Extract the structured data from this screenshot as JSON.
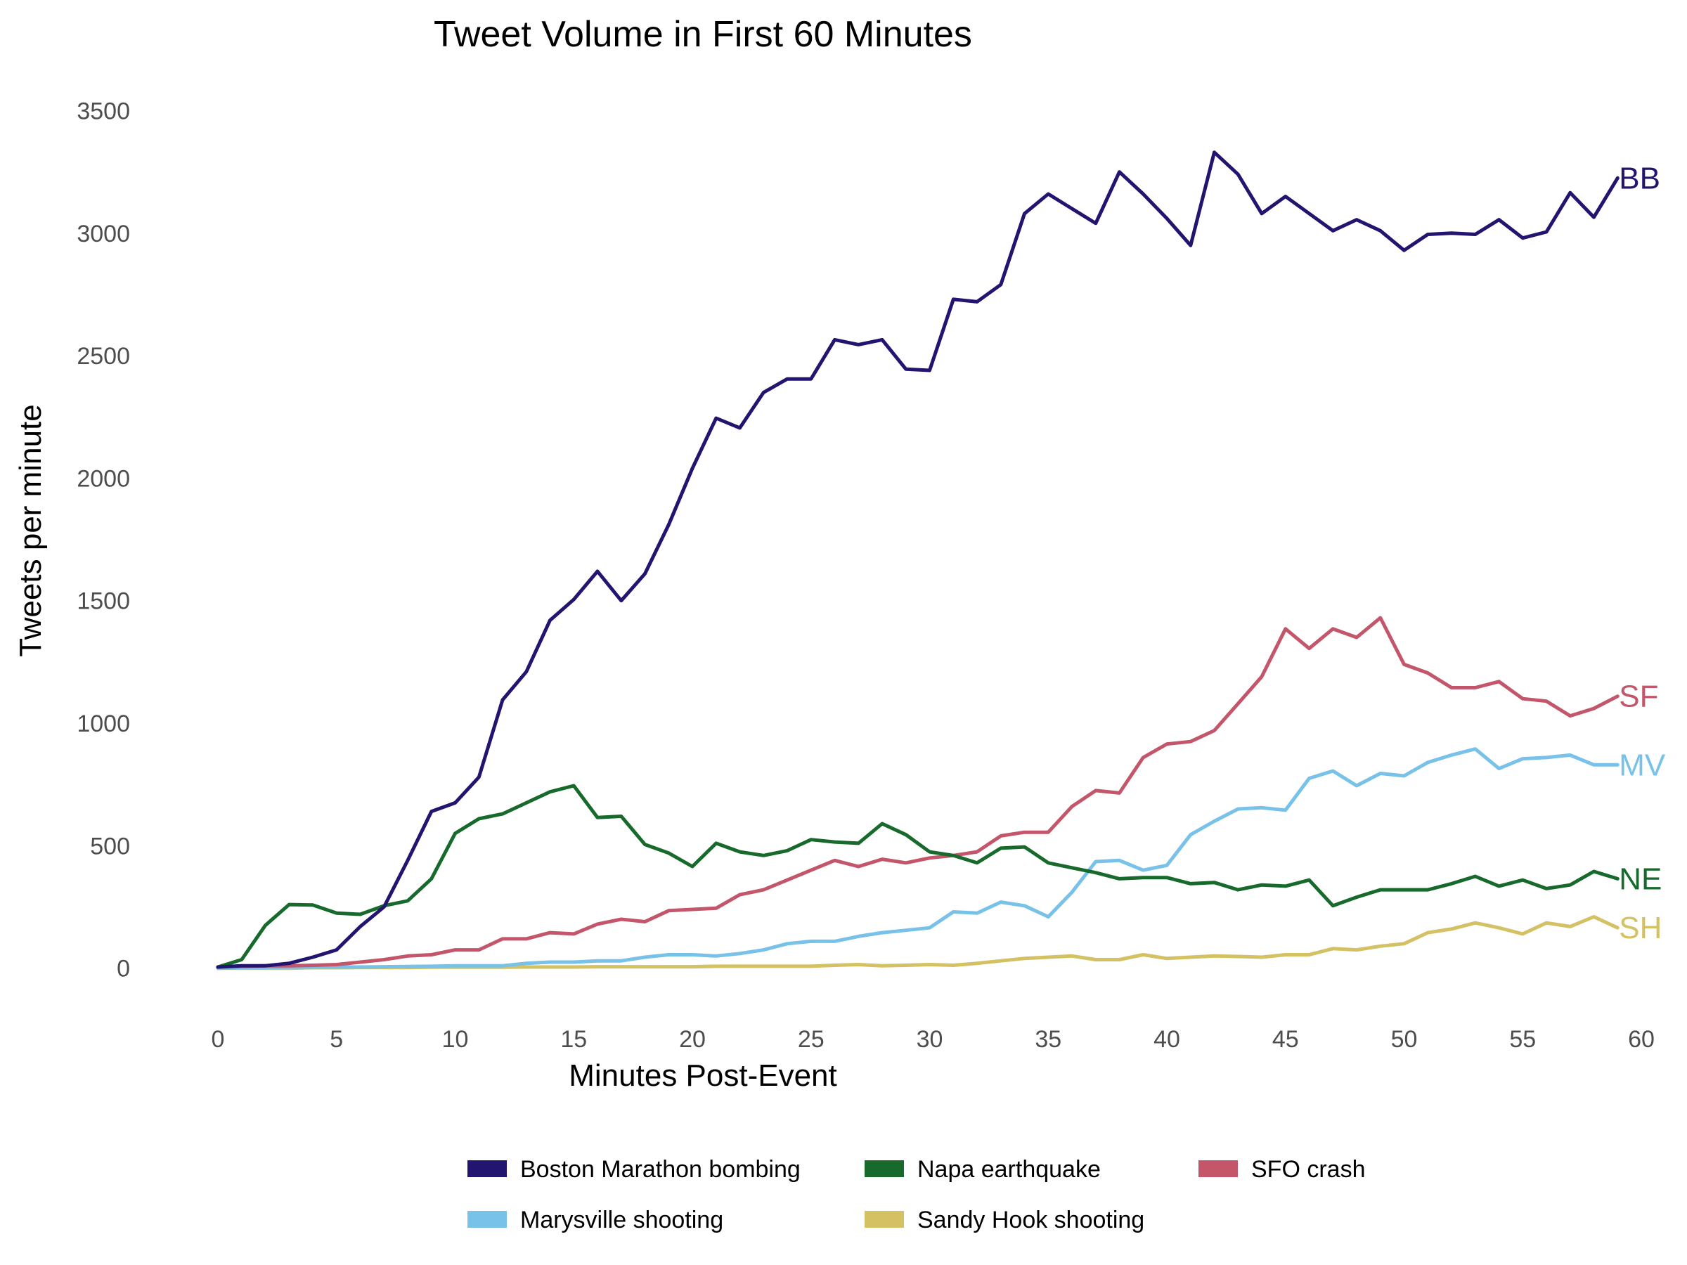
{
  "chart_data": {
    "type": "line",
    "title": "Tweet Volume in First 60 Minutes",
    "xlabel": "Minutes Post-Event",
    "ylabel": "Tweets per minute",
    "xlim": [
      0,
      60
    ],
    "ylim": [
      -150,
      3550
    ],
    "xticks": [
      0,
      5,
      10,
      15,
      20,
      25,
      30,
      35,
      40,
      45,
      50,
      55,
      60
    ],
    "yticks": [
      0,
      500,
      1000,
      1500,
      2000,
      2500,
      3000,
      3500
    ],
    "grid": false,
    "legend_position": "bottom",
    "x": [
      0,
      1,
      2,
      3,
      4,
      5,
      6,
      7,
      8,
      9,
      10,
      11,
      12,
      13,
      14,
      15,
      16,
      17,
      18,
      19,
      20,
      21,
      22,
      23,
      24,
      25,
      26,
      27,
      28,
      29,
      30,
      31,
      32,
      33,
      34,
      35,
      36,
      37,
      38,
      39,
      40,
      41,
      42,
      43,
      44,
      45,
      46,
      47,
      48,
      49,
      50,
      51,
      52,
      53,
      54,
      55,
      56,
      57,
      58,
      59
    ],
    "series": [
      {
        "name": "Boston Marathon bombing",
        "short": "BB",
        "color": "#221570",
        "values": [
          5,
          10,
          10,
          20,
          45,
          75,
          170,
          250,
          440,
          640,
          675,
          780,
          1095,
          1210,
          1420,
          1505,
          1620,
          1500,
          1610,
          1810,
          2040,
          2245,
          2205,
          2350,
          2405,
          2405,
          2565,
          2545,
          2565,
          2445,
          2440,
          2730,
          2720,
          2790,
          3080,
          3160,
          3100,
          3040,
          3250,
          3160,
          3060,
          2950,
          3330,
          3240,
          3080,
          3150,
          3080,
          3010,
          3055,
          3010,
          2930,
          2995,
          3000,
          2995,
          3055,
          2980,
          3005,
          3165,
          3065,
          3225
        ]
      },
      {
        "name": "Napa earthquake",
        "short": "NE",
        "color": "#176a2c",
        "values": [
          5,
          35,
          175,
          260,
          258,
          225,
          220,
          255,
          275,
          365,
          550,
          610,
          630,
          675,
          720,
          745,
          615,
          620,
          505,
          470,
          415,
          510,
          475,
          460,
          480,
          525,
          515,
          510,
          590,
          545,
          475,
          460,
          430,
          490,
          495,
          430,
          410,
          390,
          365,
          370,
          370,
          345,
          350,
          320,
          340,
          335,
          360,
          255,
          290,
          320,
          320,
          320,
          345,
          375,
          335,
          360,
          325,
          340,
          395,
          365
        ]
      },
      {
        "name": "SFO crash",
        "short": "SF",
        "color": "#c3566a",
        "values": [
          5,
          8,
          10,
          10,
          12,
          15,
          25,
          35,
          50,
          55,
          75,
          75,
          120,
          120,
          145,
          140,
          180,
          200,
          190,
          235,
          240,
          245,
          300,
          320,
          360,
          400,
          440,
          415,
          445,
          430,
          450,
          460,
          475,
          540,
          555,
          555,
          660,
          725,
          715,
          860,
          915,
          925,
          970,
          1080,
          1190,
          1385,
          1305,
          1385,
          1350,
          1430,
          1240,
          1205,
          1145,
          1145,
          1170,
          1100,
          1090,
          1030,
          1060,
          1110
        ]
      },
      {
        "name": "Marysville shooting",
        "short": "MV",
        "color": "#78c1e8",
        "values": [
          0,
          2,
          3,
          4,
          5,
          5,
          5,
          6,
          7,
          8,
          10,
          10,
          10,
          20,
          25,
          25,
          30,
          30,
          45,
          55,
          55,
          50,
          60,
          75,
          100,
          110,
          110,
          130,
          145,
          155,
          165,
          230,
          225,
          270,
          255,
          210,
          310,
          435,
          440,
          400,
          420,
          545,
          600,
          650,
          655,
          645,
          775,
          805,
          745,
          795,
          785,
          840,
          870,
          895,
          815,
          855,
          860,
          870,
          830,
          830
        ]
      },
      {
        "name": "Sandy Hook shooting",
        "short": "SH",
        "color": "#d3c164",
        "values": [
          0,
          0,
          0,
          0,
          2,
          2,
          3,
          3,
          3,
          4,
          4,
          4,
          4,
          5,
          5,
          5,
          6,
          6,
          6,
          6,
          6,
          8,
          8,
          8,
          8,
          8,
          12,
          15,
          10,
          12,
          15,
          12,
          20,
          30,
          40,
          45,
          50,
          35,
          35,
          55,
          40,
          45,
          50,
          48,
          45,
          55,
          55,
          80,
          75,
          90,
          100,
          145,
          160,
          185,
          165,
          140,
          185,
          170,
          210,
          165
        ]
      }
    ]
  }
}
